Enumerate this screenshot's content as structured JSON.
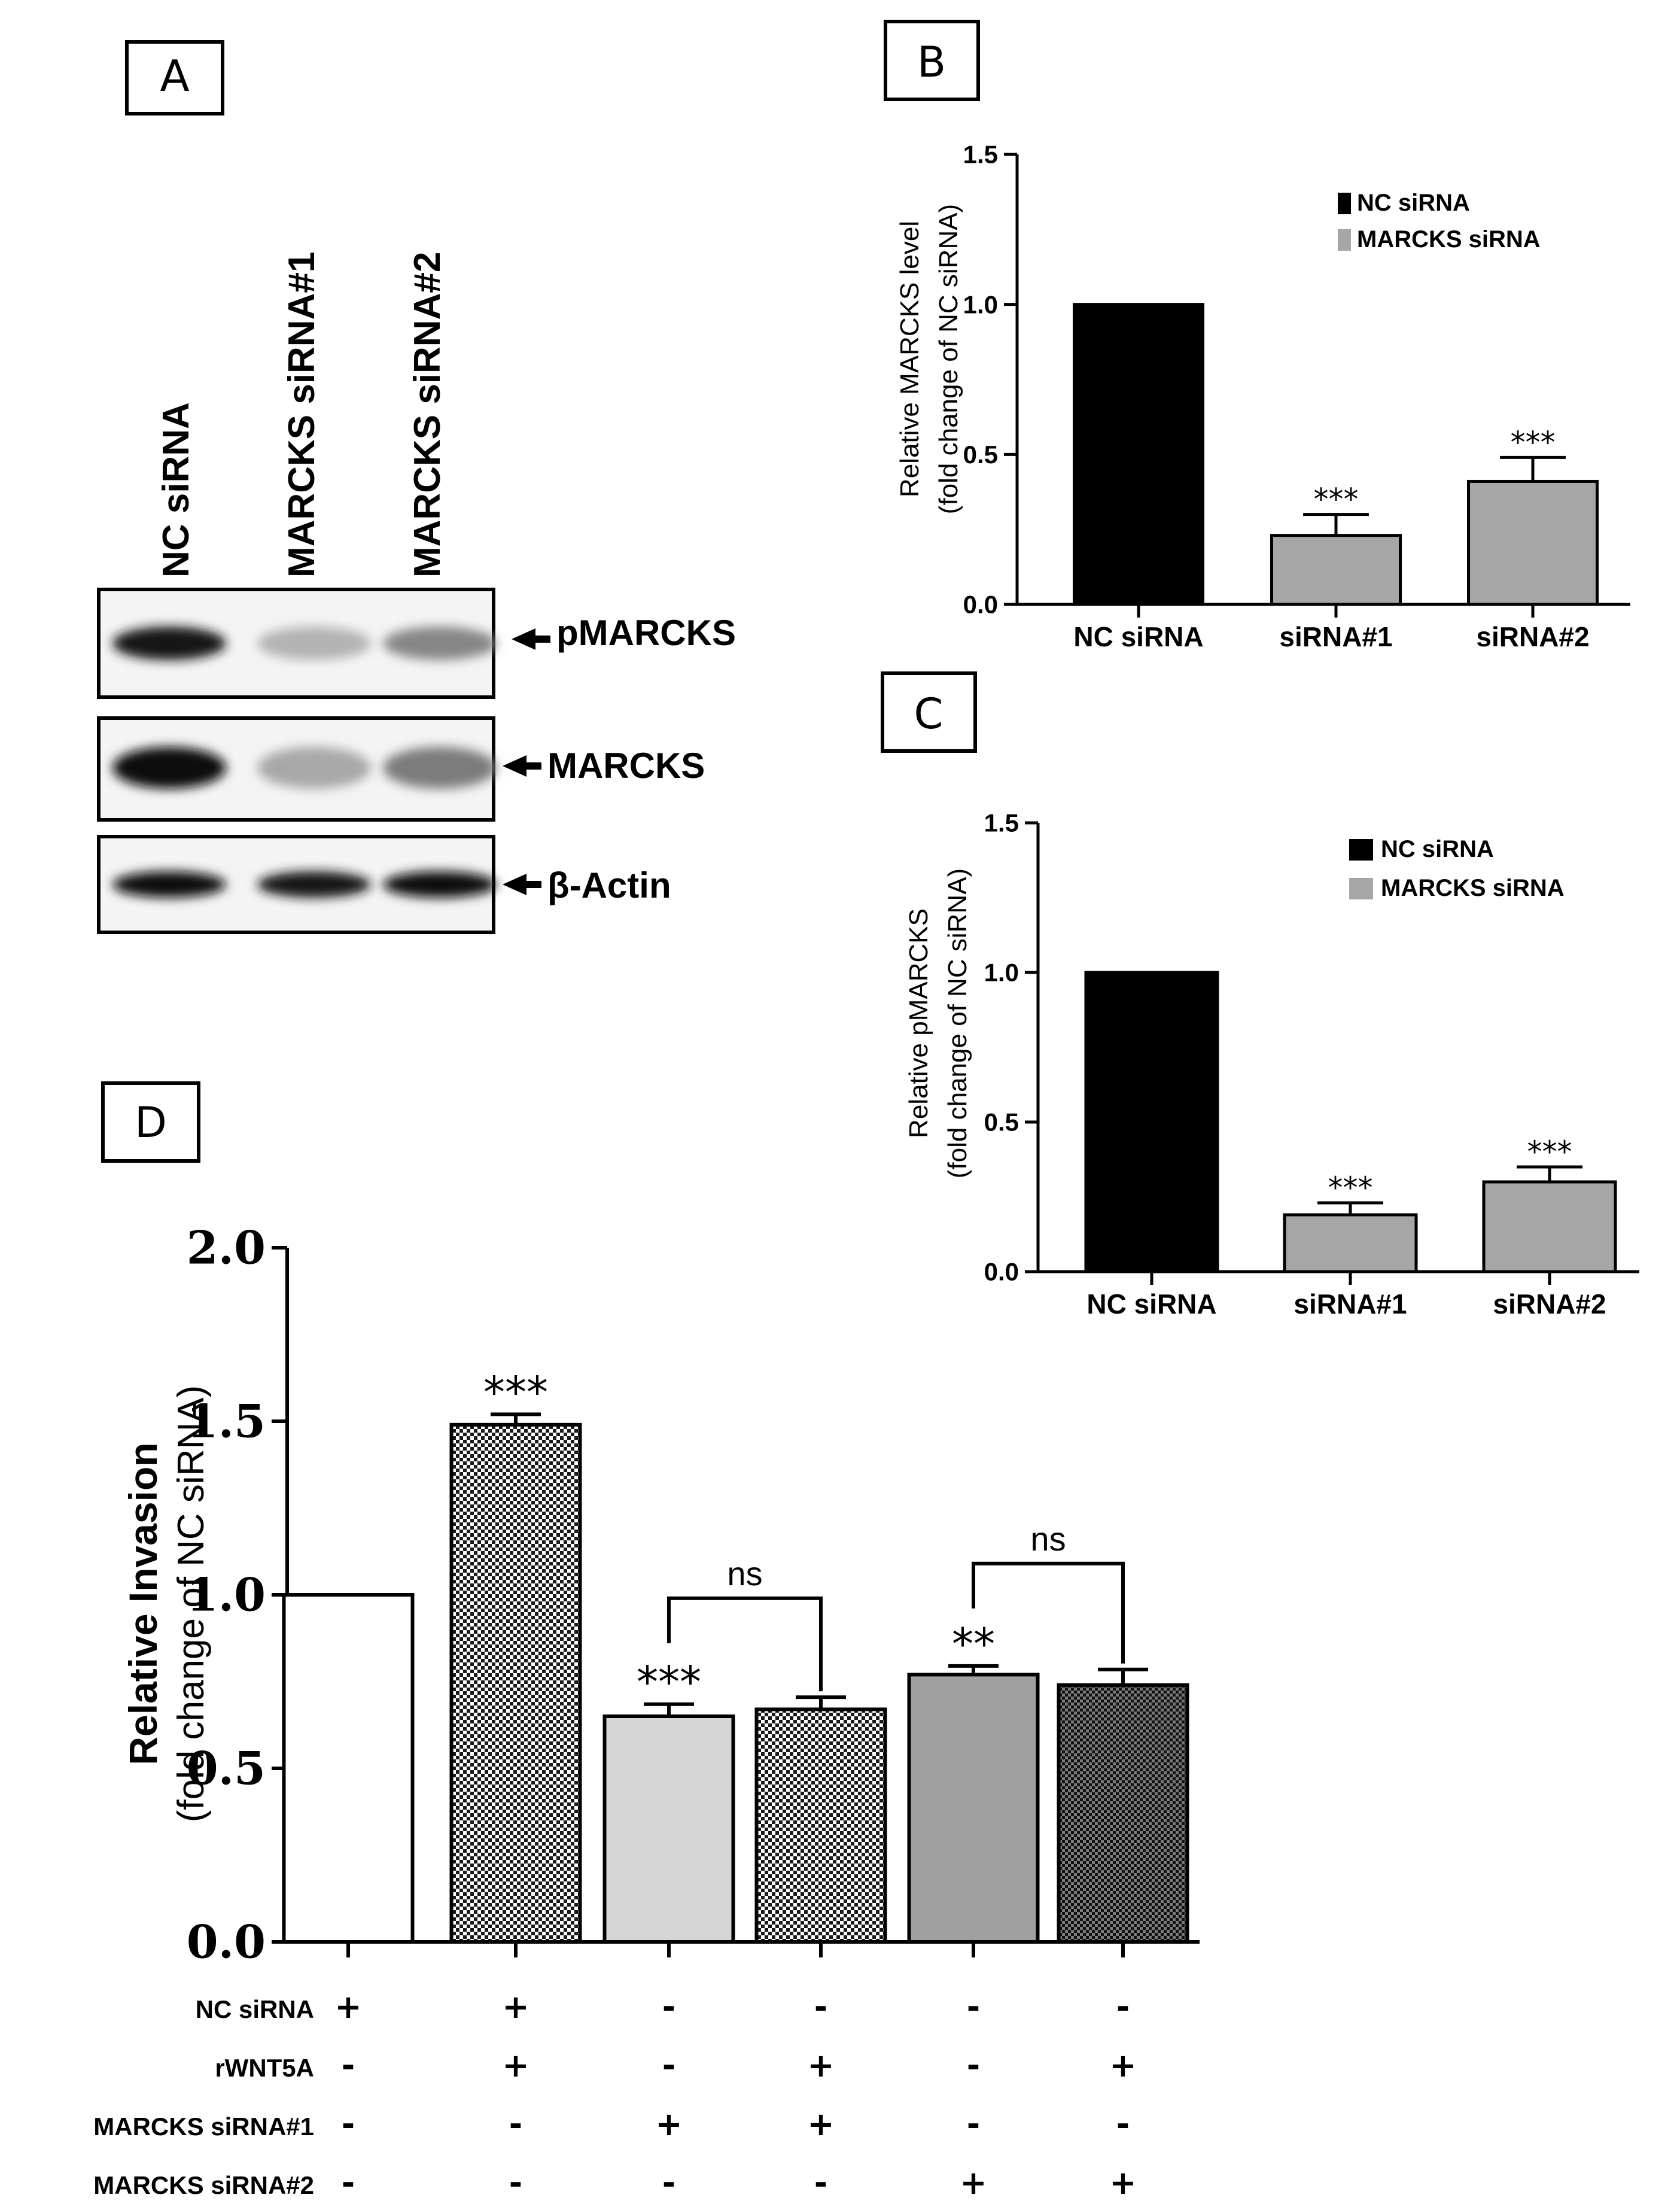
{
  "panel_a": {
    "letter": "A",
    "lane_labels": [
      "NC siRNA",
      "MARCKS siRNA#1",
      "MARCKS siRNA#2"
    ],
    "blots": [
      {
        "label": "pMARCKS",
        "band_intensity": [
          0.95,
          0.25,
          0.45
        ]
      },
      {
        "label": "MARCKS",
        "band_intensity": [
          1.0,
          0.3,
          0.5
        ]
      },
      {
        "label": "β-Actin",
        "band_intensity": [
          1.0,
          0.95,
          1.0
        ]
      }
    ]
  },
  "chart_data": [
    {
      "id": "B",
      "letter": "B",
      "type": "bar",
      "ylabel": "Relative MARCKS level",
      "ylabel2": "(fold change of NC siRNA)",
      "categories": [
        "NC siRNA",
        "siRNA#1",
        "siRNA#2"
      ],
      "values": [
        1.0,
        0.23,
        0.41
      ],
      "errors": [
        0,
        0.07,
        0.08
      ],
      "significance": [
        "",
        "***",
        "***"
      ],
      "bar_colors": [
        "#000000",
        "#a6a6a6",
        "#a6a6a6"
      ],
      "ylim": [
        0,
        1.5
      ],
      "yticks": [
        "0.0",
        "0.5",
        "1.0",
        "1.5"
      ],
      "legend": [
        {
          "label": "NC siRNA",
          "color": "#000000"
        },
        {
          "label": "MARCKS siRNA",
          "color": "#a6a6a6"
        }
      ],
      "legend_position": "top-right"
    },
    {
      "id": "C",
      "letter": "C",
      "type": "bar",
      "ylabel": "Relative pMARCKS",
      "ylabel2": "(fold change of NC siRNA)",
      "categories": [
        "NC siRNA",
        "siRNA#1",
        "siRNA#2"
      ],
      "values": [
        1.0,
        0.19,
        0.3
      ],
      "errors": [
        0,
        0.04,
        0.05
      ],
      "significance": [
        "",
        "***",
        "***"
      ],
      "bar_colors": [
        "#000000",
        "#a6a6a6",
        "#a6a6a6"
      ],
      "ylim": [
        0,
        1.5
      ],
      "yticks": [
        "0.0",
        "0.5",
        "1.0",
        "1.5"
      ],
      "legend": [
        {
          "label": "NC siRNA",
          "color": "#000000"
        },
        {
          "label": "MARCKS siRNA",
          "color": "#a6a6a6"
        }
      ],
      "legend_position": "top-right"
    },
    {
      "id": "D",
      "letter": "D",
      "type": "bar",
      "ylabel": "Relative Invasion",
      "ylabel2": "(fold change of NC siRNA)",
      "values": [
        1.0,
        1.49,
        0.65,
        0.67,
        0.77,
        0.74
      ],
      "errors": [
        0,
        0.03,
        0.035,
        0.035,
        0.025,
        0.045
      ],
      "significance": [
        "",
        "***",
        "***",
        "",
        "**",
        ""
      ],
      "bar_styles": [
        "white",
        "checker-dark",
        "light-gray",
        "checker-dark",
        "gray",
        "checker-dense"
      ],
      "ylim": [
        0,
        2.0
      ],
      "yticks": [
        "0.0",
        "0.5",
        "1.0",
        "1.5",
        "2.0"
      ],
      "comparisons": [
        {
          "from": 2,
          "to": 3,
          "label": "ns"
        },
        {
          "from": 4,
          "to": 5,
          "label": "ns"
        }
      ],
      "conditions": [
        {
          "label": "NC siRNA",
          "signs": [
            "+",
            "+",
            "-",
            "-",
            "-",
            "-"
          ]
        },
        {
          "label": "rWNT5A",
          "signs": [
            "-",
            "+",
            "-",
            "+",
            "-",
            "+"
          ]
        },
        {
          "label": "MARCKS siRNA#1",
          "signs": [
            "-",
            "-",
            "+",
            "+",
            "-",
            "-"
          ]
        },
        {
          "label": "MARCKS siRNA#2",
          "signs": [
            "-",
            "-",
            "-",
            "-",
            "+",
            "+"
          ]
        }
      ]
    }
  ]
}
